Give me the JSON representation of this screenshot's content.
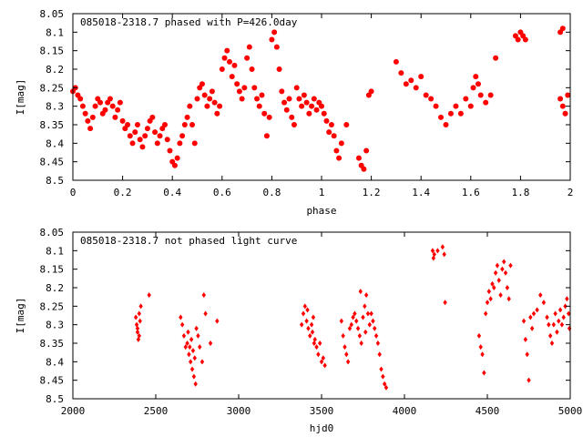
{
  "chart_data": [
    {
      "type": "scatter",
      "title": "085018-2318.7 phased with P=426.0day",
      "xlabel": "phase",
      "ylabel": "I[mag]",
      "xlim": [
        0,
        2
      ],
      "ylim": [
        8.05,
        8.5
      ],
      "y_inverted": true,
      "grid": false,
      "legend": "none",
      "marker": "filled-circle",
      "color": "#ff0000",
      "x_ticks": [
        "0",
        "0.2",
        "0.4",
        "0.6",
        "0.8",
        "1",
        "1.2",
        "1.4",
        "1.6",
        "1.8",
        "2"
      ],
      "x_tick_values": [
        0,
        0.2,
        0.4,
        0.6,
        0.8,
        1,
        1.2,
        1.4,
        1.6,
        1.8,
        2
      ],
      "y_ticks": [
        "8.05",
        "8.1",
        "8.15",
        "8.2",
        "8.25",
        "8.3",
        "8.35",
        "8.4",
        "8.45",
        "8.5"
      ],
      "y_tick_values": [
        8.05,
        8.1,
        8.15,
        8.2,
        8.25,
        8.3,
        8.35,
        8.4,
        8.45,
        8.5
      ],
      "points": [
        [
          0.0,
          8.26
        ],
        [
          0.01,
          8.25
        ],
        [
          0.02,
          8.27
        ],
        [
          0.03,
          8.28
        ],
        [
          0.04,
          8.3
        ],
        [
          0.05,
          8.32
        ],
        [
          0.06,
          8.34
        ],
        [
          0.07,
          8.36
        ],
        [
          0.08,
          8.33
        ],
        [
          0.09,
          8.3
        ],
        [
          0.1,
          8.28
        ],
        [
          0.11,
          8.29
        ],
        [
          0.12,
          8.32
        ],
        [
          0.13,
          8.31
        ],
        [
          0.14,
          8.29
        ],
        [
          0.15,
          8.28
        ],
        [
          0.16,
          8.3
        ],
        [
          0.17,
          8.33
        ],
        [
          0.18,
          8.31
        ],
        [
          0.19,
          8.29
        ],
        [
          0.2,
          8.34
        ],
        [
          0.21,
          8.36
        ],
        [
          0.22,
          8.35
        ],
        [
          0.23,
          8.38
        ],
        [
          0.24,
          8.4
        ],
        [
          0.25,
          8.37
        ],
        [
          0.26,
          8.35
        ],
        [
          0.27,
          8.39
        ],
        [
          0.28,
          8.41
        ],
        [
          0.29,
          8.38
        ],
        [
          0.3,
          8.36
        ],
        [
          0.31,
          8.34
        ],
        [
          0.32,
          8.33
        ],
        [
          0.33,
          8.37
        ],
        [
          0.34,
          8.4
        ],
        [
          0.35,
          8.38
        ],
        [
          0.36,
          8.36
        ],
        [
          0.37,
          8.35
        ],
        [
          0.38,
          8.39
        ],
        [
          0.39,
          8.42
        ],
        [
          0.4,
          8.45
        ],
        [
          0.41,
          8.46
        ],
        [
          0.42,
          8.44
        ],
        [
          0.43,
          8.4
        ],
        [
          0.44,
          8.38
        ],
        [
          0.45,
          8.35
        ],
        [
          0.46,
          8.33
        ],
        [
          0.47,
          8.3
        ],
        [
          0.48,
          8.35
        ],
        [
          0.49,
          8.4
        ],
        [
          0.5,
          8.28
        ],
        [
          0.51,
          8.25
        ],
        [
          0.52,
          8.24
        ],
        [
          0.53,
          8.27
        ],
        [
          0.54,
          8.3
        ],
        [
          0.55,
          8.28
        ],
        [
          0.56,
          8.26
        ],
        [
          0.57,
          8.29
        ],
        [
          0.58,
          8.32
        ],
        [
          0.59,
          8.3
        ],
        [
          0.6,
          8.2
        ],
        [
          0.61,
          8.17
        ],
        [
          0.62,
          8.15
        ],
        [
          0.63,
          8.18
        ],
        [
          0.64,
          8.22
        ],
        [
          0.65,
          8.19
        ],
        [
          0.66,
          8.24
        ],
        [
          0.67,
          8.26
        ],
        [
          0.68,
          8.28
        ],
        [
          0.69,
          8.25
        ],
        [
          0.7,
          8.17
        ],
        [
          0.71,
          8.14
        ],
        [
          0.72,
          8.2
        ],
        [
          0.73,
          8.25
        ],
        [
          0.74,
          8.28
        ],
        [
          0.75,
          8.3
        ],
        [
          0.76,
          8.27
        ],
        [
          0.77,
          8.32
        ],
        [
          0.78,
          8.38
        ],
        [
          0.79,
          8.33
        ],
        [
          0.8,
          8.12
        ],
        [
          0.81,
          8.1
        ],
        [
          0.82,
          8.14
        ],
        [
          0.83,
          8.2
        ],
        [
          0.84,
          8.26
        ],
        [
          0.85,
          8.29
        ],
        [
          0.86,
          8.31
        ],
        [
          0.87,
          8.28
        ],
        [
          0.88,
          8.33
        ],
        [
          0.89,
          8.35
        ],
        [
          0.9,
          8.25
        ],
        [
          0.91,
          8.28
        ],
        [
          0.92,
          8.3
        ],
        [
          0.93,
          8.27
        ],
        [
          0.94,
          8.29
        ],
        [
          0.95,
          8.32
        ],
        [
          0.96,
          8.3
        ],
        [
          0.97,
          8.28
        ],
        [
          0.98,
          8.31
        ],
        [
          0.99,
          8.29
        ],
        [
          1.0,
          8.3
        ],
        [
          1.01,
          8.32
        ],
        [
          1.02,
          8.34
        ],
        [
          1.03,
          8.37
        ],
        [
          1.04,
          8.35
        ],
        [
          1.05,
          8.38
        ],
        [
          1.06,
          8.42
        ],
        [
          1.07,
          8.44
        ],
        [
          1.08,
          8.4
        ],
        [
          1.1,
          8.35
        ],
        [
          1.15,
          8.44
        ],
        [
          1.16,
          8.46
        ],
        [
          1.17,
          8.47
        ],
        [
          1.18,
          8.42
        ],
        [
          1.19,
          8.27
        ],
        [
          1.2,
          8.26
        ],
        [
          1.3,
          8.18
        ],
        [
          1.32,
          8.21
        ],
        [
          1.34,
          8.24
        ],
        [
          1.36,
          8.23
        ],
        [
          1.38,
          8.25
        ],
        [
          1.4,
          8.22
        ],
        [
          1.42,
          8.27
        ],
        [
          1.44,
          8.28
        ],
        [
          1.46,
          8.3
        ],
        [
          1.48,
          8.33
        ],
        [
          1.5,
          8.35
        ],
        [
          1.52,
          8.32
        ],
        [
          1.54,
          8.3
        ],
        [
          1.56,
          8.32
        ],
        [
          1.58,
          8.28
        ],
        [
          1.6,
          8.3
        ],
        [
          1.61,
          8.25
        ],
        [
          1.62,
          8.22
        ],
        [
          1.63,
          8.24
        ],
        [
          1.64,
          8.27
        ],
        [
          1.66,
          8.29
        ],
        [
          1.68,
          8.27
        ],
        [
          1.7,
          8.17
        ],
        [
          1.78,
          8.11
        ],
        [
          1.79,
          8.12
        ],
        [
          1.8,
          8.1
        ],
        [
          1.81,
          8.11
        ],
        [
          1.82,
          8.12
        ],
        [
          1.96,
          8.28
        ],
        [
          1.97,
          8.3
        ],
        [
          1.98,
          8.32
        ],
        [
          1.99,
          8.27
        ],
        [
          1.96,
          8.1
        ],
        [
          1.97,
          8.09
        ]
      ]
    },
    {
      "type": "scatter",
      "title": "085018-2318.7 not phased light curve",
      "xlabel": "hjd0",
      "ylabel": "I[mag]",
      "xlim": [
        2000,
        5000
      ],
      "ylim": [
        8.05,
        8.5
      ],
      "y_inverted": true,
      "grid": false,
      "legend": "none",
      "marker": "diamond",
      "color": "#ff0000",
      "x_ticks": [
        "2000",
        "2500",
        "3000",
        "3500",
        "4000",
        "4500",
        "5000"
      ],
      "x_tick_values": [
        2000,
        2500,
        3000,
        3500,
        4000,
        4500,
        5000
      ],
      "y_ticks": [
        "8.05",
        "8.1",
        "8.15",
        "8.2",
        "8.25",
        "8.3",
        "8.35",
        "8.4",
        "8.45",
        "8.5"
      ],
      "y_tick_values": [
        8.05,
        8.1,
        8.15,
        8.2,
        8.25,
        8.3,
        8.35,
        8.4,
        8.45,
        8.5
      ],
      "points": [
        [
          2380,
          8.28
        ],
        [
          2385,
          8.3
        ],
        [
          2390,
          8.32
        ],
        [
          2395,
          8.34
        ],
        [
          2400,
          8.27
        ],
        [
          2405,
          8.29
        ],
        [
          2410,
          8.25
        ],
        [
          2390,
          8.31
        ],
        [
          2400,
          8.33
        ],
        [
          2460,
          8.22
        ],
        [
          2650,
          8.28
        ],
        [
          2660,
          8.3
        ],
        [
          2670,
          8.33
        ],
        [
          2680,
          8.36
        ],
        [
          2690,
          8.35
        ],
        [
          2700,
          8.38
        ],
        [
          2710,
          8.4
        ],
        [
          2720,
          8.42
        ],
        [
          2730,
          8.44
        ],
        [
          2740,
          8.46
        ],
        [
          2695,
          8.32
        ],
        [
          2705,
          8.36
        ],
        [
          2715,
          8.34
        ],
        [
          2725,
          8.37
        ],
        [
          2735,
          8.39
        ],
        [
          2745,
          8.31
        ],
        [
          2755,
          8.33
        ],
        [
          2765,
          8.36
        ],
        [
          2780,
          8.4
        ],
        [
          2790,
          8.22
        ],
        [
          2800,
          8.27
        ],
        [
          2830,
          8.35
        ],
        [
          2870,
          8.29
        ],
        [
          3380,
          8.3
        ],
        [
          3390,
          8.27
        ],
        [
          3400,
          8.25
        ],
        [
          3410,
          8.29
        ],
        [
          3420,
          8.31
        ],
        [
          3430,
          8.33
        ],
        [
          3440,
          8.3
        ],
        [
          3450,
          8.28
        ],
        [
          3460,
          8.34
        ],
        [
          3470,
          8.36
        ],
        [
          3480,
          8.38
        ],
        [
          3490,
          8.35
        ],
        [
          3500,
          8.4
        ],
        [
          3510,
          8.39
        ],
        [
          3520,
          8.41
        ],
        [
          3415,
          8.26
        ],
        [
          3445,
          8.32
        ],
        [
          3455,
          8.35
        ],
        [
          3620,
          8.29
        ],
        [
          3630,
          8.33
        ],
        [
          3640,
          8.36
        ],
        [
          3650,
          8.38
        ],
        [
          3660,
          8.4
        ],
        [
          3670,
          8.31
        ],
        [
          3680,
          8.3
        ],
        [
          3690,
          8.28
        ],
        [
          3700,
          8.27
        ],
        [
          3710,
          8.29
        ],
        [
          3720,
          8.31
        ],
        [
          3730,
          8.33
        ],
        [
          3740,
          8.35
        ],
        [
          3750,
          8.28
        ],
        [
          3760,
          8.25
        ],
        [
          3770,
          8.22
        ],
        [
          3780,
          8.27
        ],
        [
          3790,
          8.3
        ],
        [
          3800,
          8.27
        ],
        [
          3810,
          8.29
        ],
        [
          3820,
          8.31
        ],
        [
          3830,
          8.33
        ],
        [
          3840,
          8.35
        ],
        [
          3850,
          8.38
        ],
        [
          3860,
          8.42
        ],
        [
          3870,
          8.44
        ],
        [
          3880,
          8.46
        ],
        [
          3890,
          8.47
        ],
        [
          3735,
          8.21
        ],
        [
          3765,
          8.32
        ],
        [
          4170,
          8.1
        ],
        [
          4175,
          8.12
        ],
        [
          4180,
          8.11
        ],
        [
          4200,
          8.1
        ],
        [
          4230,
          8.09
        ],
        [
          4240,
          8.11
        ],
        [
          4245,
          8.24
        ],
        [
          4450,
          8.33
        ],
        [
          4460,
          8.36
        ],
        [
          4470,
          8.38
        ],
        [
          4480,
          8.43
        ],
        [
          4490,
          8.27
        ],
        [
          4500,
          8.24
        ],
        [
          4510,
          8.21
        ],
        [
          4520,
          8.23
        ],
        [
          4530,
          8.19
        ],
        [
          4540,
          8.2
        ],
        [
          4550,
          8.16
        ],
        [
          4560,
          8.14
        ],
        [
          4570,
          8.18
        ],
        [
          4580,
          8.22
        ],
        [
          4590,
          8.15
        ],
        [
          4600,
          8.13
        ],
        [
          4610,
          8.16
        ],
        [
          4620,
          8.2
        ],
        [
          4630,
          8.23
        ],
        [
          4640,
          8.14
        ],
        [
          4720,
          8.29
        ],
        [
          4730,
          8.34
        ],
        [
          4740,
          8.38
        ],
        [
          4750,
          8.45
        ],
        [
          4760,
          8.28
        ],
        [
          4770,
          8.31
        ],
        [
          4780,
          8.27
        ],
        [
          4800,
          8.26
        ],
        [
          4820,
          8.22
        ],
        [
          4840,
          8.24
        ],
        [
          4860,
          8.28
        ],
        [
          4870,
          8.3
        ],
        [
          4880,
          8.33
        ],
        [
          4890,
          8.35
        ],
        [
          4900,
          8.3
        ],
        [
          4910,
          8.27
        ],
        [
          4920,
          8.32
        ],
        [
          4930,
          8.29
        ],
        [
          4940,
          8.26
        ],
        [
          4950,
          8.3
        ],
        [
          4960,
          8.28
        ],
        [
          4970,
          8.25
        ],
        [
          4980,
          8.23
        ],
        [
          4990,
          8.27
        ],
        [
          4995,
          8.31
        ]
      ]
    }
  ]
}
